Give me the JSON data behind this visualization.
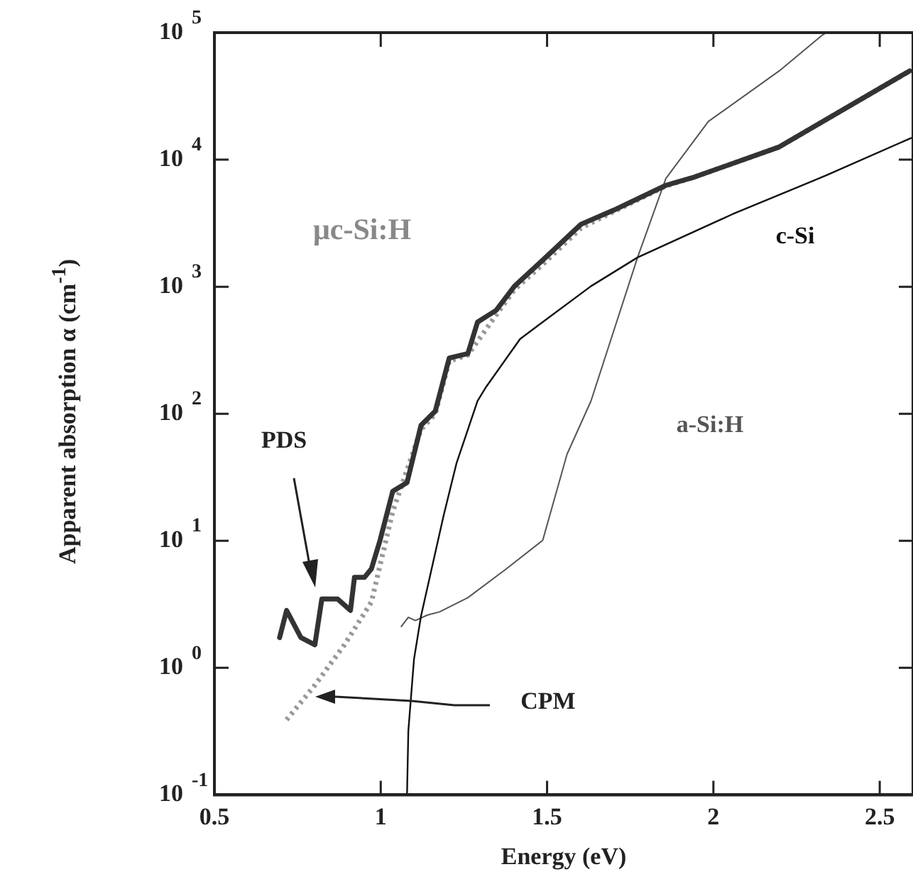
{
  "chart_data": {
    "type": "line",
    "xlabel": "Energy (eV)",
    "ylabel": "Apparent absorption α (cm$^{-1}$)",
    "log": "y",
    "xlim": [
      0.5,
      2.6
    ],
    "xticks": [
      0.5,
      1,
      1.5,
      2,
      2.5
    ],
    "ylim": [
      0.1,
      100000
    ],
    "yticks": [
      {
        "value": 0.1,
        "label": "10$^{-1}$"
      },
      {
        "value": 1,
        "label": "10$^{0}$"
      },
      {
        "value": 10,
        "label": "10$^{1}$"
      },
      {
        "value": 100,
        "label": "10$^{2}$"
      },
      {
        "value": 1000,
        "label": "10$^{3}$"
      },
      {
        "value": 10000,
        "label": "10$^{4}$"
      },
      {
        "value": 100000,
        "label": "10$^{5}$"
      }
    ],
    "grid": false,
    "legend": false,
    "marker": "none",
    "series": [
      {
        "color": "#333333",
        "line_style": "solid",
        "x": [
          0.696,
          0.717,
          0.76,
          0.802,
          0.823,
          0.87,
          0.909,
          0.921,
          0.951,
          0.972,
          0.998,
          1.036,
          1.079,
          1.121,
          1.164,
          1.206,
          1.262,
          1.291,
          1.347,
          1.402,
          1.487,
          1.602,
          1.7,
          1.857,
          1.943,
          2.198,
          2.59
        ],
        "values": [
          1.73,
          2.83,
          1.73,
          1.52,
          3.49,
          3.49,
          2.83,
          5.15,
          5.15,
          6.02,
          10.1,
          24.5,
          28.7,
          81,
          105,
          275,
          298,
          527,
          652,
          1010,
          1620,
          3100,
          4000,
          6280,
          7300,
          12600,
          50000
        ]
      },
      {
        "color": "#999999",
        "line_style": "dotted",
        "x": [
          0.717,
          0.802,
          0.891,
          0.972,
          1.036,
          1.121,
          1.164,
          1.206,
          1.262,
          1.347,
          1.402,
          1.487,
          1.602,
          1.7,
          1.857,
          1.943,
          2.198,
          2.59
        ],
        "values": [
          0.39,
          0.73,
          1.52,
          3.3,
          17,
          75,
          100,
          260,
          290,
          600,
          950,
          1500,
          2900,
          3900,
          6200,
          7300,
          12600,
          50000
        ]
      },
      {
        "name": "c-Si",
        "color": "#111111",
        "line_style": "solid",
        "x": [
          1.079,
          1.083,
          1.1,
          1.121,
          1.189,
          1.228,
          1.291,
          1.317,
          1.419,
          1.632,
          1.772,
          2.057,
          2.338,
          2.594
        ],
        "values": [
          0.1,
          0.32,
          1.17,
          2.55,
          15.8,
          41,
          126,
          163,
          388,
          1010,
          1700,
          3720,
          7500,
          14800
        ]
      },
      {
        "name": "a-Si:H",
        "color": "#555555",
        "line_style": "solid",
        "x": [
          1.062,
          1.083,
          1.104,
          1.14,
          1.177,
          1.262,
          1.377,
          1.487,
          1.56,
          1.632,
          1.674,
          1.772,
          1.857,
          1.985,
          2.198,
          2.326,
          2.34
        ],
        "values": [
          2.12,
          2.5,
          2.36,
          2.6,
          2.76,
          3.57,
          6,
          10.1,
          48,
          126,
          275,
          1700,
          7100,
          20000,
          50000,
          95000,
          100000
        ]
      }
    ],
    "annotations": [
      "μc-Si:H",
      "PDS",
      "CPM"
    ]
  }
}
